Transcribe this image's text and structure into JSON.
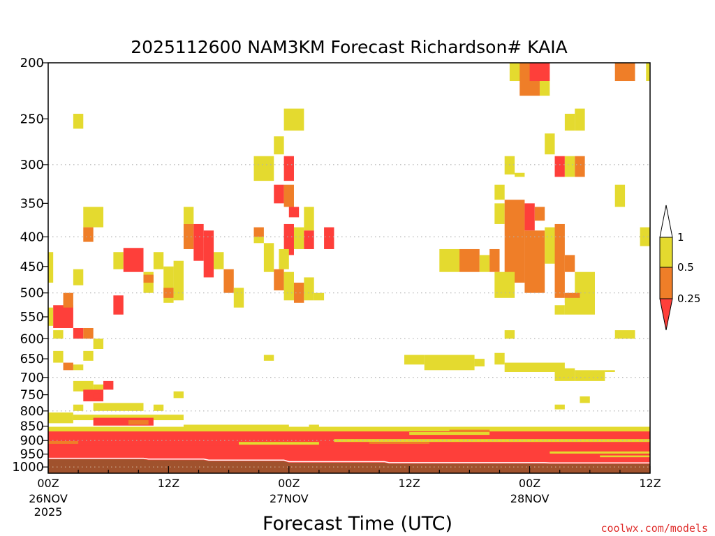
{
  "chart_data": {
    "type": "heatmap",
    "title": "2025112600 NAM3KM Forecast Richardson# KAIA",
    "xlabel": "Forecast Time (UTC)",
    "ylabel": "",
    "credit": "coolwx.com/models",
    "x_unit": "forecast hour",
    "xlim": [
      0,
      60
    ],
    "y_unit": "pressure (hPa)",
    "ylim": [
      200,
      1025
    ],
    "y_scale": "log-pressure",
    "y_ticks": [
      {
        "value": 200,
        "label": "200"
      },
      {
        "value": 250,
        "label": "250"
      },
      {
        "value": 300,
        "label": "300"
      },
      {
        "value": 350,
        "label": "350"
      },
      {
        "value": 400,
        "label": "400"
      },
      {
        "value": 450,
        "label": "450"
      },
      {
        "value": 500,
        "label": "500"
      },
      {
        "value": 550,
        "label": "550"
      },
      {
        "value": 600,
        "label": "600"
      },
      {
        "value": 650,
        "label": "650"
      },
      {
        "value": 700,
        "label": "700"
      },
      {
        "value": 750,
        "label": "750"
      },
      {
        "value": 800,
        "label": "800"
      },
      {
        "value": 850,
        "label": "850"
      },
      {
        "value": 900,
        "label": "900"
      },
      {
        "value": 950,
        "label": "950"
      },
      {
        "value": 1000,
        "label": "1000"
      }
    ],
    "gridlines_hpa": [
      300,
      400,
      500,
      600,
      700,
      800,
      900,
      1000
    ],
    "x_ticks": [
      {
        "value": 0,
        "label": "00Z",
        "date": "26NOV",
        "year": "2025"
      },
      {
        "value": 12,
        "label": "12Z",
        "date": "",
        "year": ""
      },
      {
        "value": 24,
        "label": "00Z",
        "date": "27NOV",
        "year": ""
      },
      {
        "value": 36,
        "label": "12Z",
        "date": "",
        "year": ""
      },
      {
        "value": 48,
        "label": "00Z",
        "date": "28NOV",
        "year": ""
      },
      {
        "value": 60,
        "label": "12Z",
        "date": "",
        "year": ""
      }
    ],
    "colors": {
      "lt025": "#fe3f3a",
      "025_05": "#ef7e28",
      "05_1": "#e4da2f",
      "ground": "#a0522d",
      "grid": "#b0b0b0"
    },
    "legend": {
      "position": "right",
      "levels": [
        "1",
        "0.5",
        "0.25"
      ],
      "bins": [
        {
          "range": "0.5-1",
          "color": "#e4da2f"
        },
        {
          "range": "0.25-0.5",
          "color": "#ef7e28"
        },
        {
          "range": "<0.25",
          "color": "#fe3f3a"
        }
      ]
    },
    "surface_pressure_hpa": [
      [
        0,
        970
      ],
      [
        9.5,
        970
      ],
      [
        10,
        973
      ],
      [
        15.5,
        973
      ],
      [
        16,
        977
      ],
      [
        23.5,
        977
      ],
      [
        24,
        983
      ],
      [
        33.5,
        983
      ],
      [
        34,
        987
      ],
      [
        49.5,
        987
      ],
      [
        50,
        988
      ],
      [
        60,
        988
      ]
    ],
    "cells": [
      {
        "t0": 46.0,
        "t1": 48.0,
        "p0": 200,
        "p1": 215,
        "ri": "0.5-1"
      },
      {
        "t0": 47.0,
        "t1": 49.0,
        "p0": 200,
        "p1": 228,
        "ri": "0.25-0.5"
      },
      {
        "t0": 48.0,
        "t1": 50.0,
        "p0": 200,
        "p1": 215,
        "ri": "<0.25"
      },
      {
        "t0": 49.0,
        "t1": 50.0,
        "p0": 215,
        "p1": 228,
        "ri": "0.5-1"
      },
      {
        "t0": 56.5,
        "t1": 58.5,
        "p0": 200,
        "p1": 215,
        "ri": "0.25-0.5"
      },
      {
        "t0": 59.6,
        "t1": 60.0,
        "p0": 200,
        "p1": 215,
        "ri": "0.5-1"
      },
      {
        "t0": 2.5,
        "t1": 3.5,
        "p0": 245,
        "p1": 260,
        "ri": "0.5-1"
      },
      {
        "t0": 23.5,
        "t1": 25.5,
        "p0": 240,
        "p1": 262,
        "ri": "0.5-1"
      },
      {
        "t0": 51.5,
        "t1": 52.5,
        "p0": 245,
        "p1": 262,
        "ri": "0.5-1"
      },
      {
        "t0": 52.5,
        "t1": 53.5,
        "p0": 240,
        "p1": 262,
        "ri": "0.5-1"
      },
      {
        "t0": 22.5,
        "t1": 23.5,
        "p0": 268,
        "p1": 288,
        "ri": "0.5-1"
      },
      {
        "t0": 49.5,
        "t1": 50.5,
        "p0": 265,
        "p1": 288,
        "ri": "0.5-1"
      },
      {
        "t0": 20.5,
        "t1": 22.5,
        "p0": 290,
        "p1": 320,
        "ri": "0.5-1"
      },
      {
        "t0": 23.5,
        "t1": 24.5,
        "p0": 290,
        "p1": 320,
        "ri": "<0.25"
      },
      {
        "t0": 45.5,
        "t1": 46.5,
        "p0": 290,
        "p1": 312,
        "ri": "0.5-1"
      },
      {
        "t0": 46.5,
        "t1": 47.5,
        "p0": 310,
        "p1": 315,
        "ri": "0.5-1"
      },
      {
        "t0": 50.5,
        "t1": 51.5,
        "p0": 290,
        "p1": 315,
        "ri": "<0.25"
      },
      {
        "t0": 51.5,
        "t1": 52.5,
        "p0": 290,
        "p1": 315,
        "ri": "0.5-1"
      },
      {
        "t0": 52.5,
        "t1": 53.5,
        "p0": 290,
        "p1": 315,
        "ri": "0.25-0.5"
      },
      {
        "t0": 22.5,
        "t1": 23.5,
        "p0": 325,
        "p1": 350,
        "ri": "<0.25"
      },
      {
        "t0": 23.5,
        "t1": 24.5,
        "p0": 325,
        "p1": 355,
        "ri": "0.25-0.5"
      },
      {
        "t0": 44.5,
        "t1": 45.5,
        "p0": 325,
        "p1": 345,
        "ri": "0.5-1"
      },
      {
        "t0": 56.5,
        "t1": 57.5,
        "p0": 325,
        "p1": 355,
        "ri": "0.5-1"
      },
      {
        "t0": 3.5,
        "t1": 5.5,
        "p0": 355,
        "p1": 385,
        "ri": "0.5-1"
      },
      {
        "t0": 3.5,
        "t1": 4.5,
        "p0": 385,
        "p1": 408,
        "ri": "0.25-0.5"
      },
      {
        "t0": 13.5,
        "t1": 14.5,
        "p0": 355,
        "p1": 380,
        "ri": "0.5-1"
      },
      {
        "t0": 13.5,
        "t1": 14.5,
        "p0": 380,
        "p1": 420,
        "ri": "0.25-0.5"
      },
      {
        "t0": 14.5,
        "t1": 15.5,
        "p0": 380,
        "p1": 440,
        "ri": "<0.25"
      },
      {
        "t0": 15.5,
        "t1": 16.5,
        "p0": 390,
        "p1": 470,
        "ri": "<0.25"
      },
      {
        "t0": 16.5,
        "t1": 17.5,
        "p0": 425,
        "p1": 455,
        "ri": "0.5-1"
      },
      {
        "t0": 17.5,
        "t1": 18.5,
        "p0": 455,
        "p1": 500,
        "ri": "0.25-0.5"
      },
      {
        "t0": 18.5,
        "t1": 19.5,
        "p0": 490,
        "p1": 530,
        "ri": "0.5-1"
      },
      {
        "t0": 24.0,
        "t1": 25.0,
        "p0": 355,
        "p1": 370,
        "ri": "<0.25"
      },
      {
        "t0": 25.5,
        "t1": 26.5,
        "p0": 355,
        "p1": 390,
        "ri": "0.5-1"
      },
      {
        "t0": 20.5,
        "t1": 21.5,
        "p0": 385,
        "p1": 400,
        "ri": "0.25-0.5"
      },
      {
        "t0": 23.5,
        "t1": 24.5,
        "p0": 380,
        "p1": 430,
        "ri": "<0.25"
      },
      {
        "t0": 24.5,
        "t1": 25.5,
        "p0": 385,
        "p1": 420,
        "ri": "0.5-1"
      },
      {
        "t0": 25.5,
        "t1": 26.5,
        "p0": 390,
        "p1": 420,
        "ri": "<0.25"
      },
      {
        "t0": 27.5,
        "t1": 28.5,
        "p0": 385,
        "p1": 420,
        "ri": "<0.25"
      },
      {
        "t0": 44.5,
        "t1": 45.5,
        "p0": 350,
        "p1": 380,
        "ri": "0.5-1"
      },
      {
        "t0": 45.5,
        "t1": 47.5,
        "p0": 345,
        "p1": 480,
        "ri": "0.25-0.5"
      },
      {
        "t0": 47.5,
        "t1": 48.5,
        "p0": 350,
        "p1": 390,
        "ri": "<0.25"
      },
      {
        "t0": 48.5,
        "t1": 49.5,
        "p0": 355,
        "p1": 375,
        "ri": "0.25-0.5"
      },
      {
        "t0": 47.5,
        "t1": 49.5,
        "p0": 390,
        "p1": 500,
        "ri": "0.25-0.5"
      },
      {
        "t0": 49.5,
        "t1": 50.5,
        "p0": 385,
        "p1": 445,
        "ri": "0.5-1"
      },
      {
        "t0": 50.5,
        "t1": 51.5,
        "p0": 380,
        "p1": 510,
        "ri": "0.25-0.5"
      },
      {
        "t0": 51.5,
        "t1": 52.5,
        "p0": 430,
        "p1": 460,
        "ri": "0.25-0.5"
      },
      {
        "t0": 59.0,
        "t1": 60.0,
        "p0": 385,
        "p1": 415,
        "ri": "0.5-1"
      },
      {
        "t0": 6.5,
        "t1": 7.5,
        "p0": 425,
        "p1": 455,
        "ri": "0.5-1"
      },
      {
        "t0": 7.5,
        "t1": 9.5,
        "p0": 418,
        "p1": 460,
        "ri": "<0.25"
      },
      {
        "t0": 9.5,
        "t1": 10.5,
        "p0": 460,
        "p1": 500,
        "ri": "0.5-1"
      },
      {
        "t0": 9.5,
        "t1": 10.5,
        "p0": 465,
        "p1": 480,
        "ri": "0.25-0.5"
      },
      {
        "t0": 10.5,
        "t1": 11.5,
        "p0": 425,
        "p1": 455,
        "ri": "0.5-1"
      },
      {
        "t0": 11.5,
        "t1": 12.5,
        "p0": 450,
        "p1": 520,
        "ri": "0.5-1"
      },
      {
        "t0": 11.5,
        "t1": 12.5,
        "p0": 490,
        "p1": 510,
        "ri": "0.25-0.5"
      },
      {
        "t0": 12.5,
        "t1": 13.5,
        "p0": 440,
        "p1": 515,
        "ri": "0.5-1"
      },
      {
        "t0": 0.0,
        "t1": 0.5,
        "p0": 425,
        "p1": 480,
        "ri": "0.5-1"
      },
      {
        "t0": 2.5,
        "t1": 3.5,
        "p0": 455,
        "p1": 485,
        "ri": "0.5-1"
      },
      {
        "t0": 6.5,
        "t1": 7.5,
        "p0": 505,
        "p1": 545,
        "ri": "<0.25"
      },
      {
        "t0": 20.5,
        "t1": 21.5,
        "p0": 400,
        "p1": 410,
        "ri": "0.5-1"
      },
      {
        "t0": 21.5,
        "t1": 22.5,
        "p0": 410,
        "p1": 460,
        "ri": "0.5-1"
      },
      {
        "t0": 23.0,
        "t1": 24.0,
        "p0": 420,
        "p1": 455,
        "ri": "0.5-1"
      },
      {
        "t0": 22.5,
        "t1": 23.5,
        "p0": 455,
        "p1": 495,
        "ri": "0.25-0.5"
      },
      {
        "t0": 23.5,
        "t1": 24.5,
        "p0": 460,
        "p1": 515,
        "ri": "0.5-1"
      },
      {
        "t0": 24.5,
        "t1": 25.5,
        "p0": 480,
        "p1": 520,
        "ri": "0.25-0.5"
      },
      {
        "t0": 25.5,
        "t1": 26.5,
        "p0": 470,
        "p1": 515,
        "ri": "0.5-1"
      },
      {
        "t0": 26.5,
        "t1": 27.5,
        "p0": 500,
        "p1": 515,
        "ri": "0.5-1"
      },
      {
        "t0": 39.0,
        "t1": 41.0,
        "p0": 420,
        "p1": 460,
        "ri": "0.5-1"
      },
      {
        "t0": 41.0,
        "t1": 43.0,
        "p0": 420,
        "p1": 460,
        "ri": "0.25-0.5"
      },
      {
        "t0": 43.0,
        "t1": 44.0,
        "p0": 430,
        "p1": 460,
        "ri": "0.5-1"
      },
      {
        "t0": 44.0,
        "t1": 45.0,
        "p0": 420,
        "p1": 460,
        "ri": "0.25-0.5"
      },
      {
        "t0": 44.5,
        "t1": 46.5,
        "p0": 460,
        "p1": 510,
        "ri": "0.5-1"
      },
      {
        "t0": 52.5,
        "t1": 54.5,
        "p0": 460,
        "p1": 515,
        "ri": "0.5-1"
      },
      {
        "t0": 51.5,
        "t1": 53.0,
        "p0": 500,
        "p1": 520,
        "ri": "0.25-0.5"
      },
      {
        "t0": 0.0,
        "t1": 0.5,
        "p0": 530,
        "p1": 570,
        "ri": "0.5-1"
      },
      {
        "t0": 0.5,
        "t1": 2.5,
        "p0": 525,
        "p1": 575,
        "ri": "<0.25"
      },
      {
        "t0": 1.5,
        "t1": 2.5,
        "p0": 500,
        "p1": 530,
        "ri": "0.25-0.5"
      },
      {
        "t0": 0.5,
        "t1": 1.5,
        "p0": 580,
        "p1": 600,
        "ri": "0.5-1"
      },
      {
        "t0": 2.5,
        "t1": 3.5,
        "p0": 575,
        "p1": 600,
        "ri": "<0.25"
      },
      {
        "t0": 3.5,
        "t1": 4.5,
        "p0": 575,
        "p1": 600,
        "ri": "0.25-0.5"
      },
      {
        "t0": 4.5,
        "t1": 5.5,
        "p0": 600,
        "p1": 625,
        "ri": "0.5-1"
      },
      {
        "t0": 50.5,
        "t1": 51.5,
        "p0": 525,
        "p1": 545,
        "ri": "0.5-1"
      },
      {
        "t0": 51.5,
        "t1": 54.5,
        "p0": 510,
        "p1": 545,
        "ri": "0.5-1"
      },
      {
        "t0": 45.5,
        "t1": 46.5,
        "p0": 580,
        "p1": 600,
        "ri": "0.5-1"
      },
      {
        "t0": 56.5,
        "t1": 58.5,
        "p0": 580,
        "p1": 600,
        "ri": "0.5-1"
      },
      {
        "t0": 0.5,
        "t1": 1.5,
        "p0": 630,
        "p1": 660,
        "ri": "0.5-1"
      },
      {
        "t0": 3.5,
        "t1": 4.5,
        "p0": 630,
        "p1": 655,
        "ri": "0.5-1"
      },
      {
        "t0": 1.5,
        "t1": 2.5,
        "p0": 660,
        "p1": 680,
        "ri": "0.25-0.5"
      },
      {
        "t0": 2.5,
        "t1": 3.5,
        "p0": 665,
        "p1": 680,
        "ri": "0.5-1"
      },
      {
        "t0": 21.5,
        "t1": 22.5,
        "p0": 640,
        "p1": 655,
        "ri": "0.5-1"
      },
      {
        "t0": 35.5,
        "t1": 37.5,
        "p0": 640,
        "p1": 665,
        "ri": "0.5-1"
      },
      {
        "t0": 37.5,
        "t1": 42.5,
        "p0": 640,
        "p1": 680,
        "ri": "0.5-1"
      },
      {
        "t0": 42.5,
        "t1": 43.5,
        "p0": 650,
        "p1": 670,
        "ri": "0.5-1"
      },
      {
        "t0": 44.5,
        "t1": 45.5,
        "p0": 635,
        "p1": 665,
        "ri": "0.5-1"
      },
      {
        "t0": 45.5,
        "t1": 51.5,
        "p0": 660,
        "p1": 685,
        "ri": "0.5-1"
      },
      {
        "t0": 50.5,
        "t1": 52.5,
        "p0": 675,
        "p1": 710,
        "ri": "0.5-1"
      },
      {
        "t0": 52.5,
        "t1": 55.5,
        "p0": 680,
        "p1": 710,
        "ri": "0.5-1"
      },
      {
        "t0": 55.5,
        "t1": 56.5,
        "p0": 680,
        "p1": 685,
        "ri": "0.5-1"
      },
      {
        "t0": 2.5,
        "t1": 4.5,
        "p0": 710,
        "p1": 740,
        "ri": "0.5-1"
      },
      {
        "t0": 4.5,
        "t1": 5.5,
        "p0": 720,
        "p1": 760,
        "ri": "0.5-1"
      },
      {
        "t0": 5.5,
        "t1": 6.5,
        "p0": 710,
        "p1": 735,
        "ri": "<0.25"
      },
      {
        "t0": 3.5,
        "t1": 5.5,
        "p0": 735,
        "p1": 770,
        "ri": "<0.25"
      },
      {
        "t0": 4.5,
        "t1": 5.5,
        "p0": 745,
        "p1": 760,
        "ri": "<0.25"
      },
      {
        "t0": 12.5,
        "t1": 13.5,
        "p0": 740,
        "p1": 760,
        "ri": "0.5-1"
      },
      {
        "t0": 53.0,
        "t1": 54.0,
        "p0": 755,
        "p1": 775,
        "ri": "0.5-1"
      },
      {
        "t0": 2.5,
        "t1": 3.5,
        "p0": 780,
        "p1": 800,
        "ri": "0.5-1"
      },
      {
        "t0": 4.5,
        "t1": 9.5,
        "p0": 775,
        "p1": 800,
        "ri": "0.5-1"
      },
      {
        "t0": 10.5,
        "t1": 11.5,
        "p0": 780,
        "p1": 800,
        "ri": "0.5-1"
      },
      {
        "t0": 50.5,
        "t1": 51.5,
        "p0": 780,
        "p1": 795,
        "ri": "0.5-1"
      },
      {
        "t0": 0.0,
        "t1": 2.5,
        "p0": 805,
        "p1": 840,
        "ri": "0.5-1"
      },
      {
        "t0": 2.5,
        "t1": 13.5,
        "p0": 812,
        "p1": 830,
        "ri": "0.5-1"
      },
      {
        "t0": 4.5,
        "t1": 10.5,
        "p0": 822,
        "p1": 848,
        "ri": "<0.25"
      },
      {
        "t0": 8.0,
        "t1": 10.0,
        "p0": 830,
        "p1": 845,
        "ri": "0.25-0.5"
      },
      {
        "t0": 13.5,
        "t1": 24.0,
        "p0": 845,
        "p1": 856,
        "ri": "0.5-1"
      },
      {
        "t0": 26.0,
        "t1": 27.0,
        "p0": 845,
        "p1": 852,
        "ri": "0.5-1"
      },
      {
        "t0": 0.0,
        "t1": 60.0,
        "p0": 852,
        "p1": 870,
        "ri": "0.5-1"
      },
      {
        "t0": 0.0,
        "t1": 60.0,
        "p0": 868,
        "p1": 920,
        "ri": "<0.25"
      },
      {
        "t0": 0.0,
        "t1": 60.0,
        "p0": 918,
        "p1": 990,
        "ri": "<0.25"
      },
      {
        "t0": 36.0,
        "t1": 44.0,
        "p0": 870,
        "p1": 880,
        "ri": "0.5-1"
      },
      {
        "t0": 40.0,
        "t1": 44.0,
        "p0": 862,
        "p1": 870,
        "ri": "0.25-0.5"
      },
      {
        "t0": 28.5,
        "t1": 60.0,
        "p0": 895,
        "p1": 905,
        "ri": "0.5-1"
      },
      {
        "t0": 32.0,
        "t1": 38.0,
        "p0": 905,
        "p1": 912,
        "ri": "0.25-0.5"
      },
      {
        "t0": 50.0,
        "t1": 60.0,
        "p0": 940,
        "p1": 948,
        "ri": "0.5-1"
      },
      {
        "t0": 55.0,
        "t1": 60.0,
        "p0": 955,
        "p1": 962,
        "ri": "0.5-1"
      },
      {
        "t0": 19.0,
        "t1": 27.0,
        "p0": 905,
        "p1": 915,
        "ri": "0.5-1"
      },
      {
        "t0": 0.0,
        "t1": 3.0,
        "p0": 902,
        "p1": 912,
        "ri": "0.25-0.5"
      }
    ]
  }
}
